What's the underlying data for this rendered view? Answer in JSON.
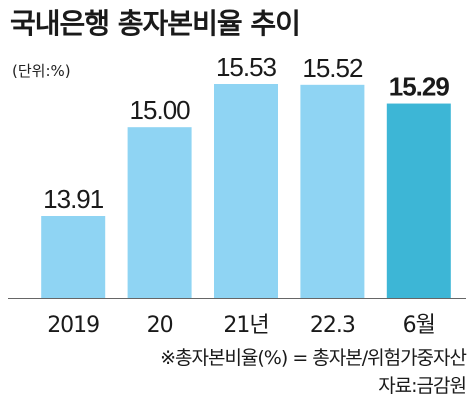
{
  "header": {
    "title": "국내은행 총자본비율 추이",
    "unit": "(단위:%)"
  },
  "chart_data": {
    "type": "bar",
    "title": "국내은행 총자본비율 추이",
    "unit": "(단위:%)",
    "categories": [
      "2019",
      "20",
      "21년",
      "22.3",
      "6월"
    ],
    "values": [
      13.91,
      15.0,
      15.53,
      15.52,
      15.29
    ],
    "value_labels": [
      "13.91",
      "15.00",
      "15.53",
      "15.52",
      "15.29"
    ],
    "highlight_index": 4,
    "colors": {
      "bar": "#8fd4f3",
      "highlight_bar": "#3db6d6",
      "baseline": "#666666"
    },
    "grid": false
  },
  "footer": {
    "note": "※총자본비율(%) = 총자본/위험가중자산",
    "source": "자료:금감원"
  }
}
